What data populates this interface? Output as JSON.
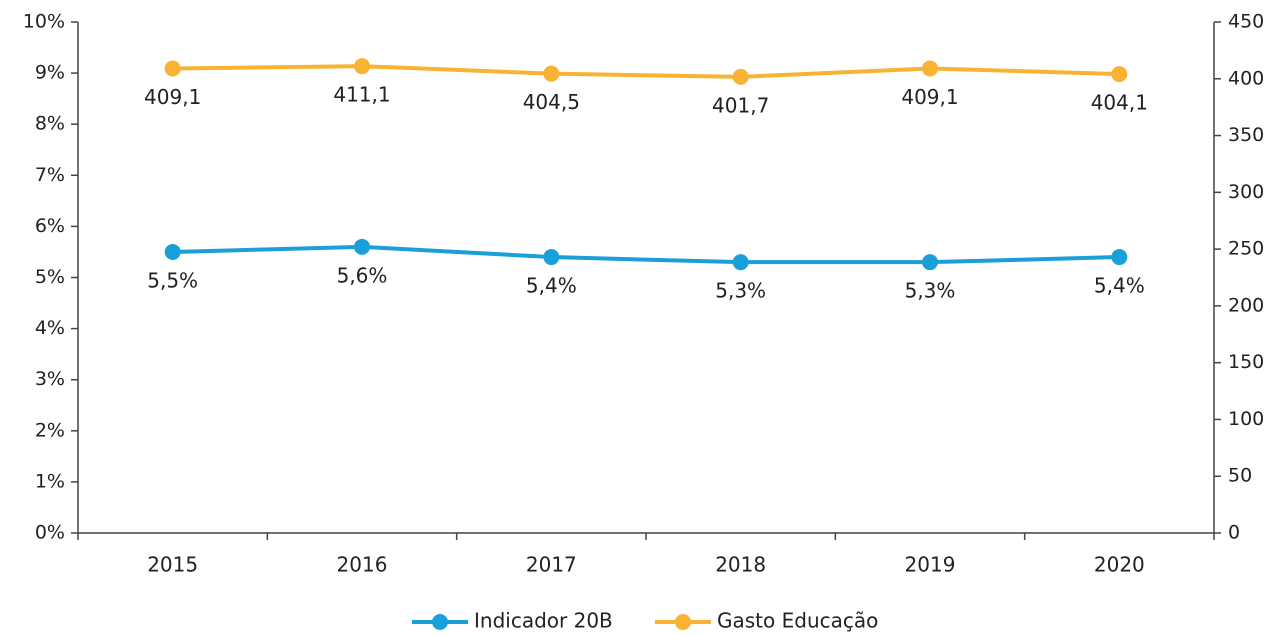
{
  "chart_data": {
    "type": "line",
    "categories": [
      "2015",
      "2016",
      "2017",
      "2018",
      "2019",
      "2020"
    ],
    "series": [
      {
        "name": "Indicador 20B",
        "color": "#1aa0d8",
        "values": [
          5.5,
          5.6,
          5.4,
          5.3,
          5.3,
          5.4
        ],
        "value_labels": [
          "5,5%",
          "5,6%",
          "5,4%",
          "5,3%",
          "5,3%",
          "5,4%"
        ]
      },
      {
        "name": "Gasto Educação",
        "color": "#f9b233",
        "axis": "y2",
        "values": [
          409.1,
          411.1,
          404.5,
          401.7,
          409.1,
          404.1
        ],
        "value_labels": [
          "409,1",
          "411,1",
          "404,5",
          "401,7",
          "409,1",
          "404,1"
        ]
      }
    ],
    "ylim": [
      0,
      10
    ],
    "yticks": [
      {
        "value": 0,
        "label": "0%"
      },
      {
        "value": 1,
        "label": "1%"
      },
      {
        "value": 2,
        "label": "2%"
      },
      {
        "value": 3,
        "label": "3%"
      },
      {
        "value": 4,
        "label": "4%"
      },
      {
        "value": 5,
        "label": "5%"
      },
      {
        "value": 6,
        "label": "6%"
      },
      {
        "value": 7,
        "label": "7%"
      },
      {
        "value": 8,
        "label": "8%"
      },
      {
        "value": 9,
        "label": "9%"
      },
      {
        "value": 10,
        "label": "10%"
      }
    ],
    "y2lim": [
      0,
      450
    ],
    "y2ticks": [
      0,
      50,
      100,
      150,
      200,
      250,
      300,
      350,
      400,
      450
    ],
    "grid": false,
    "legend": "bottom"
  }
}
